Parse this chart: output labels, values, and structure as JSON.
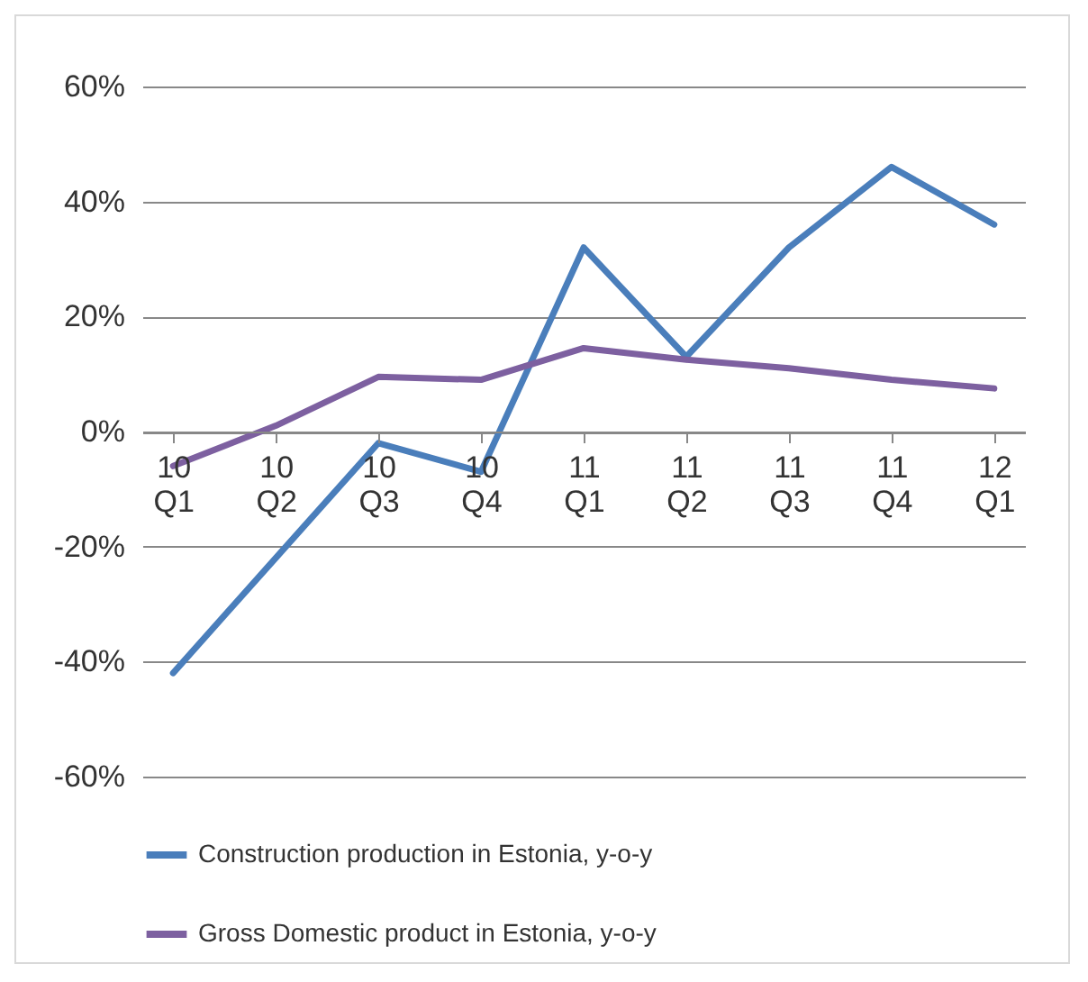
{
  "chart_data": {
    "type": "line",
    "categories": [
      "10 Q1",
      "10 Q2",
      "10 Q3",
      "10 Q4",
      "11 Q1",
      "11 Q2",
      "11 Q3",
      "11 Q4",
      "12 Q1"
    ],
    "series": [
      {
        "name": "Construction production in Estonia, y-o-y",
        "color": "#4a7ebb",
        "values": [
          -42,
          -22,
          -2,
          -7,
          32,
          13,
          32,
          46,
          36
        ]
      },
      {
        "name": "Gross Domestic product in Estonia, y-o-y",
        "color": "#7d60a0",
        "values": [
          -6,
          1,
          9.5,
          9,
          14.5,
          12.5,
          11,
          9,
          7.5
        ]
      }
    ],
    "ylim": [
      -60,
      60
    ],
    "yticks": [
      {
        "value": -60,
        "label": "-60%"
      },
      {
        "value": -40,
        "label": "-40%"
      },
      {
        "value": -20,
        "label": "-20%"
      },
      {
        "value": 0,
        "label": "0%"
      },
      {
        "value": 20,
        "label": "20%"
      },
      {
        "value": 40,
        "label": "40%"
      },
      {
        "value": 60,
        "label": "60%"
      }
    ],
    "grid": "y",
    "legend": "bottom",
    "marker": "none",
    "line_style": "solid"
  }
}
